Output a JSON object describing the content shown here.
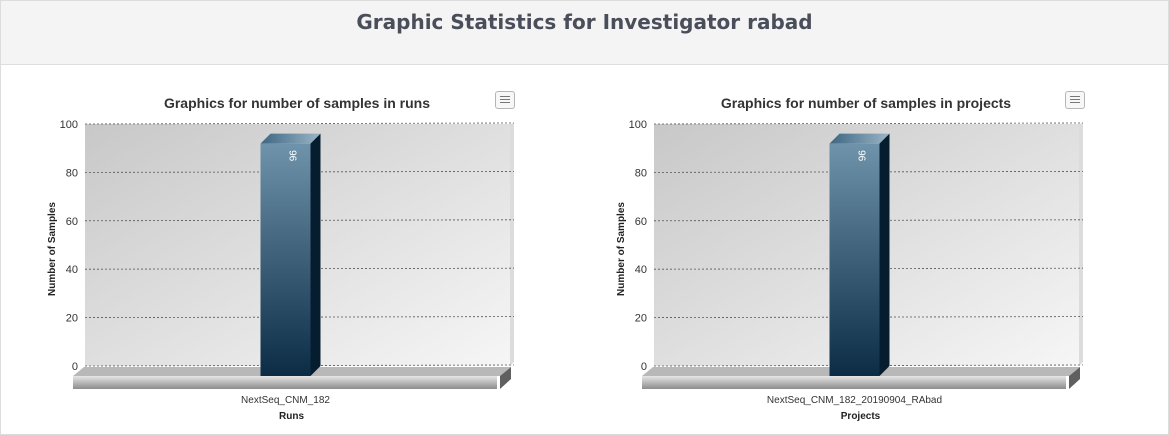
{
  "page": {
    "title": "Graphic Statistics for Investigator rabad"
  },
  "charts": [
    {
      "menu_icon": "hamburger-menu-icon",
      "chart_data": {
        "type": "bar",
        "title": "Graphics for number of samples in runs",
        "categories": [
          "NextSeq_CNM_182"
        ],
        "values": [
          96
        ],
        "data_labels": [
          "96"
        ],
        "xlabel": "Runs",
        "ylabel": "Number of Samples",
        "ylim": [
          0,
          100
        ],
        "yticks": [
          "0",
          "20",
          "40",
          "60",
          "80",
          "100"
        ],
        "grid": true,
        "style": "3d",
        "bar_color_top": "#6e93aa",
        "bar_color_bottom": "#0c2c46"
      }
    },
    {
      "menu_icon": "hamburger-menu-icon",
      "chart_data": {
        "type": "bar",
        "title": "Graphics for number of samples in projects",
        "categories": [
          "NextSeq_CNM_182_20190904_RAbad"
        ],
        "values": [
          96
        ],
        "data_labels": [
          "96"
        ],
        "xlabel": "Projects",
        "ylabel": "Number of Samples",
        "ylim": [
          0,
          100
        ],
        "yticks": [
          "0",
          "20",
          "40",
          "60",
          "80",
          "100"
        ],
        "grid": true,
        "style": "3d",
        "bar_color_top": "#6e93aa",
        "bar_color_bottom": "#0c2c46"
      }
    }
  ]
}
